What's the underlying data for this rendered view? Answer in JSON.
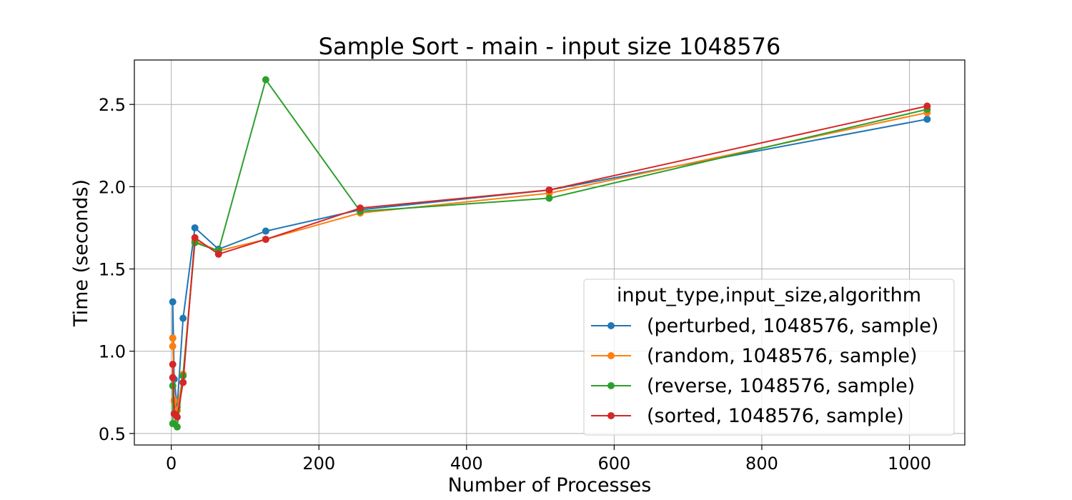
{
  "chart_data": {
    "type": "line",
    "title": "Sample Sort - main - input size 1048576",
    "xlabel": "Number of Processes",
    "ylabel": "Time (seconds)",
    "xlim": [
      -50,
      1075
    ],
    "ylim": [
      0.43,
      2.77
    ],
    "xticks": [
      0,
      200,
      400,
      600,
      800,
      1000
    ],
    "yticks": [
      0.5,
      1.0,
      1.5,
      2.0,
      2.5
    ],
    "xtick_labels": [
      "0",
      "200",
      "400",
      "600",
      "800",
      "1000"
    ],
    "ytick_labels": [
      "0.5",
      "1.0",
      "1.5",
      "2.0",
      "2.5"
    ],
    "grid": true,
    "legend": {
      "title": "input_type,input_size,algorithm",
      "position": "lower-right"
    },
    "x": [
      2,
      4,
      8,
      16,
      32,
      64,
      128,
      256,
      512,
      1024
    ],
    "series": [
      {
        "name": "(perturbed, 1048576, sample)",
        "color": "#1f77b4",
        "values": [
          1.3,
          0.83,
          0.66,
          1.2,
          1.75,
          1.62,
          1.73,
          1.86,
          1.98,
          2.41
        ],
        "extra_points": [
          [
            2,
            1.08
          ]
        ]
      },
      {
        "name": "(random, 1048576, sample)",
        "color": "#ff7f0e",
        "values": [
          1.08,
          0.7,
          0.64,
          0.86,
          1.67,
          1.61,
          1.68,
          1.84,
          1.96,
          2.45
        ],
        "extra_points": [
          [
            2,
            1.03
          ]
        ]
      },
      {
        "name": "(reverse, 1048576, sample)",
        "color": "#2ca02c",
        "values": [
          0.56,
          0.56,
          0.54,
          0.85,
          1.66,
          1.61,
          2.65,
          1.85,
          1.93,
          2.47
        ],
        "extra_points": [
          [
            2,
            0.79
          ]
        ]
      },
      {
        "name": "(sorted, 1048576, sample)",
        "color": "#d62728",
        "values": [
          0.92,
          0.62,
          0.6,
          0.81,
          1.69,
          1.59,
          1.68,
          1.87,
          1.98,
          2.49
        ],
        "extra_points": [
          [
            2,
            0.84
          ]
        ]
      }
    ]
  }
}
